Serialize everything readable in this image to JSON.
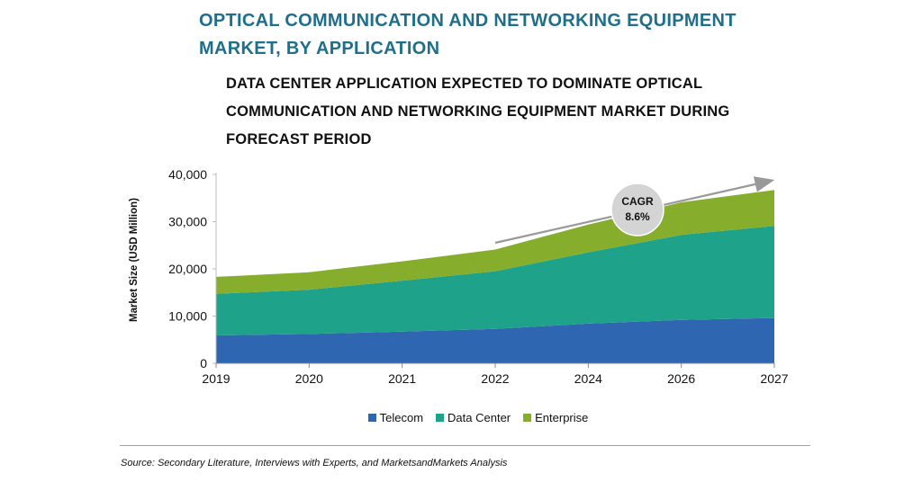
{
  "header": {
    "title_line1": "OPTICAL COMMUNICATION AND NETWORKING EQUIPMENT",
    "title_line2": "MARKET, BY APPLICATION",
    "subtitle_line1": "DATA CENTER APPLICATION EXPECTED TO DOMINATE OPTICAL",
    "subtitle_line2": "COMMUNICATION AND NETWORKING EQUIPMENT MARKET DURING",
    "subtitle_line3": "FORECAST PERIOD"
  },
  "chart_data": {
    "type": "area",
    "stacked": true,
    "categories": [
      "2019",
      "2020",
      "2021",
      "2022",
      "2024",
      "2026",
      "2027"
    ],
    "series": [
      {
        "name": "Telecom",
        "color": "#2e66b1",
        "values": [
          5900,
          6200,
          6700,
          7300,
          8400,
          9200,
          9600
        ]
      },
      {
        "name": "Data Center",
        "color": "#1fa28a",
        "values": [
          8800,
          9400,
          10800,
          12200,
          15100,
          18000,
          19500
        ]
      },
      {
        "name": "Enterprise",
        "color": "#86ae2c",
        "values": [
          3600,
          3700,
          4100,
          4600,
          5900,
          6900,
          7600
        ]
      }
    ],
    "ylabel": "Market Size (USD Million)",
    "xlabel": "",
    "ylim": [
      0,
      40000
    ],
    "yticks": [
      "0",
      "10,000",
      "20,000",
      "30,000",
      "40,000"
    ],
    "annotation": {
      "line1": "CAGR",
      "line2": "8.6%"
    },
    "legend_position": "bottom"
  },
  "footer": {
    "source": "Source: Secondary Literature, Interviews with Experts, and MarketsandMarkets Analysis"
  }
}
